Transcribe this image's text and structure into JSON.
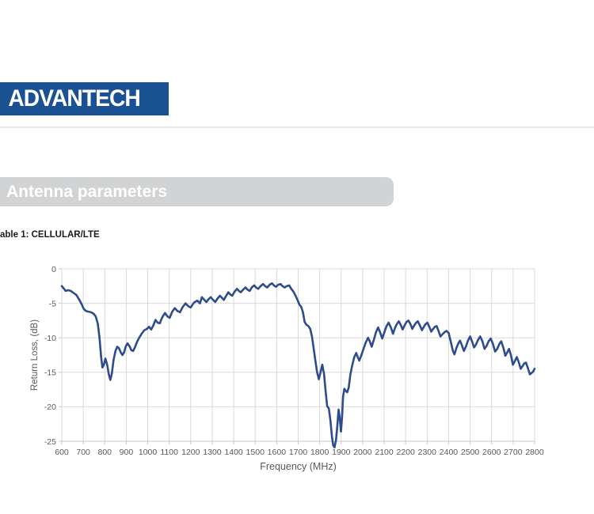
{
  "logo": {
    "text": "ADVANTECH",
    "bg_color": "#1a5193"
  },
  "top_rule_color": "#ebe8e4",
  "section_banner": {
    "label": "Antenna parameters",
    "bg_color": "#d1d3d4"
  },
  "table_caption": "able 1: CELLULAR/LTE",
  "chart_data": {
    "type": "line",
    "title": "",
    "xlabel": "Frequency (MHz)",
    "ylabel": "Return Loss, (dB)",
    "xlim": [
      600,
      2800
    ],
    "ylim": [
      -25,
      0
    ],
    "xticks": [
      600,
      700,
      800,
      900,
      1000,
      1100,
      1200,
      1300,
      1400,
      1500,
      1600,
      1700,
      1800,
      1900,
      2000,
      2100,
      2200,
      2300,
      2400,
      2500,
      2600,
      2700,
      2800
    ],
    "yticks": [
      0,
      -5,
      -10,
      -15,
      -20,
      -25
    ],
    "grid": true,
    "legend": "none",
    "grid_color": "#d9d9d9",
    "axis_color": "#c6c6c6",
    "axis_text_color": "#595959",
    "line_color": "#2e4b8c",
    "series": [
      {
        "name": "Return Loss",
        "points": [
          [
            600,
            -2.5
          ],
          [
            608,
            -2.8
          ],
          [
            618,
            -3.2
          ],
          [
            630,
            -3.1
          ],
          [
            642,
            -3.2
          ],
          [
            655,
            -3.5
          ],
          [
            668,
            -3.8
          ],
          [
            680,
            -4.4
          ],
          [
            692,
            -5.1
          ],
          [
            702,
            -5.8
          ],
          [
            712,
            -6.1
          ],
          [
            724,
            -6.2
          ],
          [
            736,
            -6.3
          ],
          [
            748,
            -6.5
          ],
          [
            758,
            -6.9
          ],
          [
            768,
            -8.0
          ],
          [
            776,
            -10.2
          ],
          [
            783,
            -12.8
          ],
          [
            789,
            -14.3
          ],
          [
            796,
            -13.9
          ],
          [
            803,
            -13.0
          ],
          [
            811,
            -13.9
          ],
          [
            819,
            -15.3
          ],
          [
            826,
            -16.1
          ],
          [
            833,
            -15.2
          ],
          [
            841,
            -13.2
          ],
          [
            850,
            -11.9
          ],
          [
            858,
            -11.3
          ],
          [
            866,
            -11.5
          ],
          [
            874,
            -12.1
          ],
          [
            882,
            -12.5
          ],
          [
            890,
            -12.1
          ],
          [
            898,
            -11.2
          ],
          [
            906,
            -10.8
          ],
          [
            915,
            -11.2
          ],
          [
            924,
            -11.8
          ],
          [
            932,
            -11.9
          ],
          [
            940,
            -11.4
          ],
          [
            950,
            -10.6
          ],
          [
            960,
            -10.0
          ],
          [
            972,
            -9.4
          ],
          [
            984,
            -8.9
          ],
          [
            996,
            -8.7
          ],
          [
            1006,
            -8.4
          ],
          [
            1016,
            -8.8
          ],
          [
            1026,
            -8.2
          ],
          [
            1036,
            -7.4
          ],
          [
            1046,
            -7.8
          ],
          [
            1056,
            -7.9
          ],
          [
            1068,
            -7.0
          ],
          [
            1080,
            -6.4
          ],
          [
            1092,
            -6.9
          ],
          [
            1102,
            -7.1
          ],
          [
            1114,
            -6.2
          ],
          [
            1126,
            -5.7
          ],
          [
            1138,
            -6.1
          ],
          [
            1150,
            -6.3
          ],
          [
            1163,
            -5.5
          ],
          [
            1176,
            -5.0
          ],
          [
            1188,
            -5.4
          ],
          [
            1200,
            -5.6
          ],
          [
            1215,
            -4.9
          ],
          [
            1230,
            -4.6
          ],
          [
            1243,
            -5.0
          ],
          [
            1252,
            -4.1
          ],
          [
            1263,
            -4.5
          ],
          [
            1273,
            -4.8
          ],
          [
            1283,
            -4.4
          ],
          [
            1293,
            -4.1
          ],
          [
            1304,
            -4.5
          ],
          [
            1314,
            -4.8
          ],
          [
            1325,
            -4.3
          ],
          [
            1336,
            -3.9
          ],
          [
            1345,
            -4.2
          ],
          [
            1354,
            -4.5
          ],
          [
            1365,
            -3.9
          ],
          [
            1375,
            -3.4
          ],
          [
            1384,
            -3.7
          ],
          [
            1393,
            -3.9
          ],
          [
            1404,
            -3.3
          ],
          [
            1415,
            -2.9
          ],
          [
            1424,
            -3.2
          ],
          [
            1433,
            -3.4
          ],
          [
            1444,
            -3.0
          ],
          [
            1455,
            -2.7
          ],
          [
            1464,
            -3.0
          ],
          [
            1474,
            -3.2
          ],
          [
            1484,
            -2.7
          ],
          [
            1495,
            -2.4
          ],
          [
            1504,
            -2.7
          ],
          [
            1514,
            -2.9
          ],
          [
            1525,
            -2.5
          ],
          [
            1537,
            -2.2
          ],
          [
            1546,
            -2.5
          ],
          [
            1556,
            -2.7
          ],
          [
            1567,
            -2.3
          ],
          [
            1578,
            -2.1
          ],
          [
            1587,
            -2.4
          ],
          [
            1597,
            -2.6
          ],
          [
            1607,
            -2.3
          ],
          [
            1618,
            -2.2
          ],
          [
            1627,
            -2.5
          ],
          [
            1637,
            -2.7
          ],
          [
            1647,
            -2.5
          ],
          [
            1658,
            -2.4
          ],
          [
            1668,
            -2.9
          ],
          [
            1678,
            -3.3
          ],
          [
            1688,
            -3.9
          ],
          [
            1698,
            -4.6
          ],
          [
            1706,
            -5.2
          ],
          [
            1714,
            -5.5
          ],
          [
            1722,
            -6.3
          ],
          [
            1730,
            -7.7
          ],
          [
            1738,
            -8.1
          ],
          [
            1748,
            -8.3
          ],
          [
            1756,
            -8.7
          ],
          [
            1764,
            -9.8
          ],
          [
            1772,
            -11.5
          ],
          [
            1780,
            -13.3
          ],
          [
            1788,
            -15.0
          ],
          [
            1796,
            -16.0
          ],
          [
            1804,
            -15.0
          ],
          [
            1812,
            -13.9
          ],
          [
            1820,
            -15.2
          ],
          [
            1828,
            -17.8
          ],
          [
            1835,
            -19.9
          ],
          [
            1843,
            -20.3
          ],
          [
            1850,
            -22.0
          ],
          [
            1857,
            -24.3
          ],
          [
            1863,
            -25.6
          ],
          [
            1869,
            -25.9
          ],
          [
            1876,
            -24.8
          ],
          [
            1882,
            -22.8
          ],
          [
            1888,
            -20.4
          ],
          [
            1893,
            -21.5
          ],
          [
            1899,
            -23.6
          ],
          [
            1904,
            -21.5
          ],
          [
            1909,
            -18.5
          ],
          [
            1915,
            -17.4
          ],
          [
            1921,
            -17.7
          ],
          [
            1928,
            -17.9
          ],
          [
            1935,
            -17.2
          ],
          [
            1943,
            -15.3
          ],
          [
            1952,
            -13.9
          ],
          [
            1961,
            -12.8
          ],
          [
            1970,
            -12.2
          ],
          [
            1977,
            -12.8
          ],
          [
            1984,
            -13.3
          ],
          [
            1993,
            -12.6
          ],
          [
            2003,
            -11.7
          ],
          [
            2014,
            -10.7
          ],
          [
            2025,
            -10.0
          ],
          [
            2033,
            -10.5
          ],
          [
            2042,
            -11.3
          ],
          [
            2052,
            -10.3
          ],
          [
            2062,
            -9.2
          ],
          [
            2072,
            -8.5
          ],
          [
            2081,
            -9.2
          ],
          [
            2091,
            -10.1
          ],
          [
            2101,
            -9.2
          ],
          [
            2111,
            -8.3
          ],
          [
            2121,
            -7.8
          ],
          [
            2131,
            -8.5
          ],
          [
            2141,
            -9.4
          ],
          [
            2150,
            -8.6
          ],
          [
            2159,
            -8.0
          ],
          [
            2168,
            -7.6
          ],
          [
            2177,
            -8.1
          ],
          [
            2186,
            -8.8
          ],
          [
            2195,
            -8.2
          ],
          [
            2204,
            -7.7
          ],
          [
            2213,
            -7.5
          ],
          [
            2222,
            -8.0
          ],
          [
            2231,
            -8.7
          ],
          [
            2240,
            -8.2
          ],
          [
            2249,
            -7.8
          ],
          [
            2257,
            -7.6
          ],
          [
            2266,
            -8.2
          ],
          [
            2276,
            -8.9
          ],
          [
            2285,
            -8.4
          ],
          [
            2293,
            -8.0
          ],
          [
            2301,
            -7.8
          ],
          [
            2310,
            -8.4
          ],
          [
            2319,
            -9.1
          ],
          [
            2328,
            -8.7
          ],
          [
            2336,
            -8.4
          ],
          [
            2344,
            -8.3
          ],
          [
            2353,
            -9.0
          ],
          [
            2362,
            -9.8
          ],
          [
            2371,
            -9.5
          ],
          [
            2380,
            -9.2
          ],
          [
            2390,
            -9.0
          ],
          [
            2400,
            -9.3
          ],
          [
            2410,
            -10.6
          ],
          [
            2420,
            -11.9
          ],
          [
            2427,
            -12.4
          ],
          [
            2436,
            -11.5
          ],
          [
            2445,
            -10.8
          ],
          [
            2453,
            -10.4
          ],
          [
            2462,
            -11.1
          ],
          [
            2471,
            -11.9
          ],
          [
            2480,
            -11.3
          ],
          [
            2490,
            -10.4
          ],
          [
            2500,
            -9.8
          ],
          [
            2509,
            -10.5
          ],
          [
            2518,
            -11.4
          ],
          [
            2527,
            -11.0
          ],
          [
            2537,
            -10.3
          ],
          [
            2547,
            -9.8
          ],
          [
            2557,
            -10.5
          ],
          [
            2567,
            -11.6
          ],
          [
            2576,
            -11.2
          ],
          [
            2586,
            -10.5
          ],
          [
            2596,
            -10.1
          ],
          [
            2606,
            -10.9
          ],
          [
            2616,
            -12.0
          ],
          [
            2626,
            -11.6
          ],
          [
            2636,
            -10.9
          ],
          [
            2645,
            -10.5
          ],
          [
            2655,
            -11.5
          ],
          [
            2664,
            -12.6
          ],
          [
            2673,
            -12.1
          ],
          [
            2681,
            -11.6
          ],
          [
            2690,
            -12.5
          ],
          [
            2699,
            -13.9
          ],
          [
            2708,
            -13.4
          ],
          [
            2717,
            -12.8
          ],
          [
            2726,
            -13.5
          ],
          [
            2735,
            -14.5
          ],
          [
            2744,
            -14.1
          ],
          [
            2752,
            -13.7
          ],
          [
            2760,
            -13.6
          ],
          [
            2769,
            -14.4
          ],
          [
            2778,
            -15.3
          ],
          [
            2786,
            -15.1
          ],
          [
            2793,
            -14.9
          ],
          [
            2800,
            -14.5
          ]
        ]
      }
    ]
  }
}
